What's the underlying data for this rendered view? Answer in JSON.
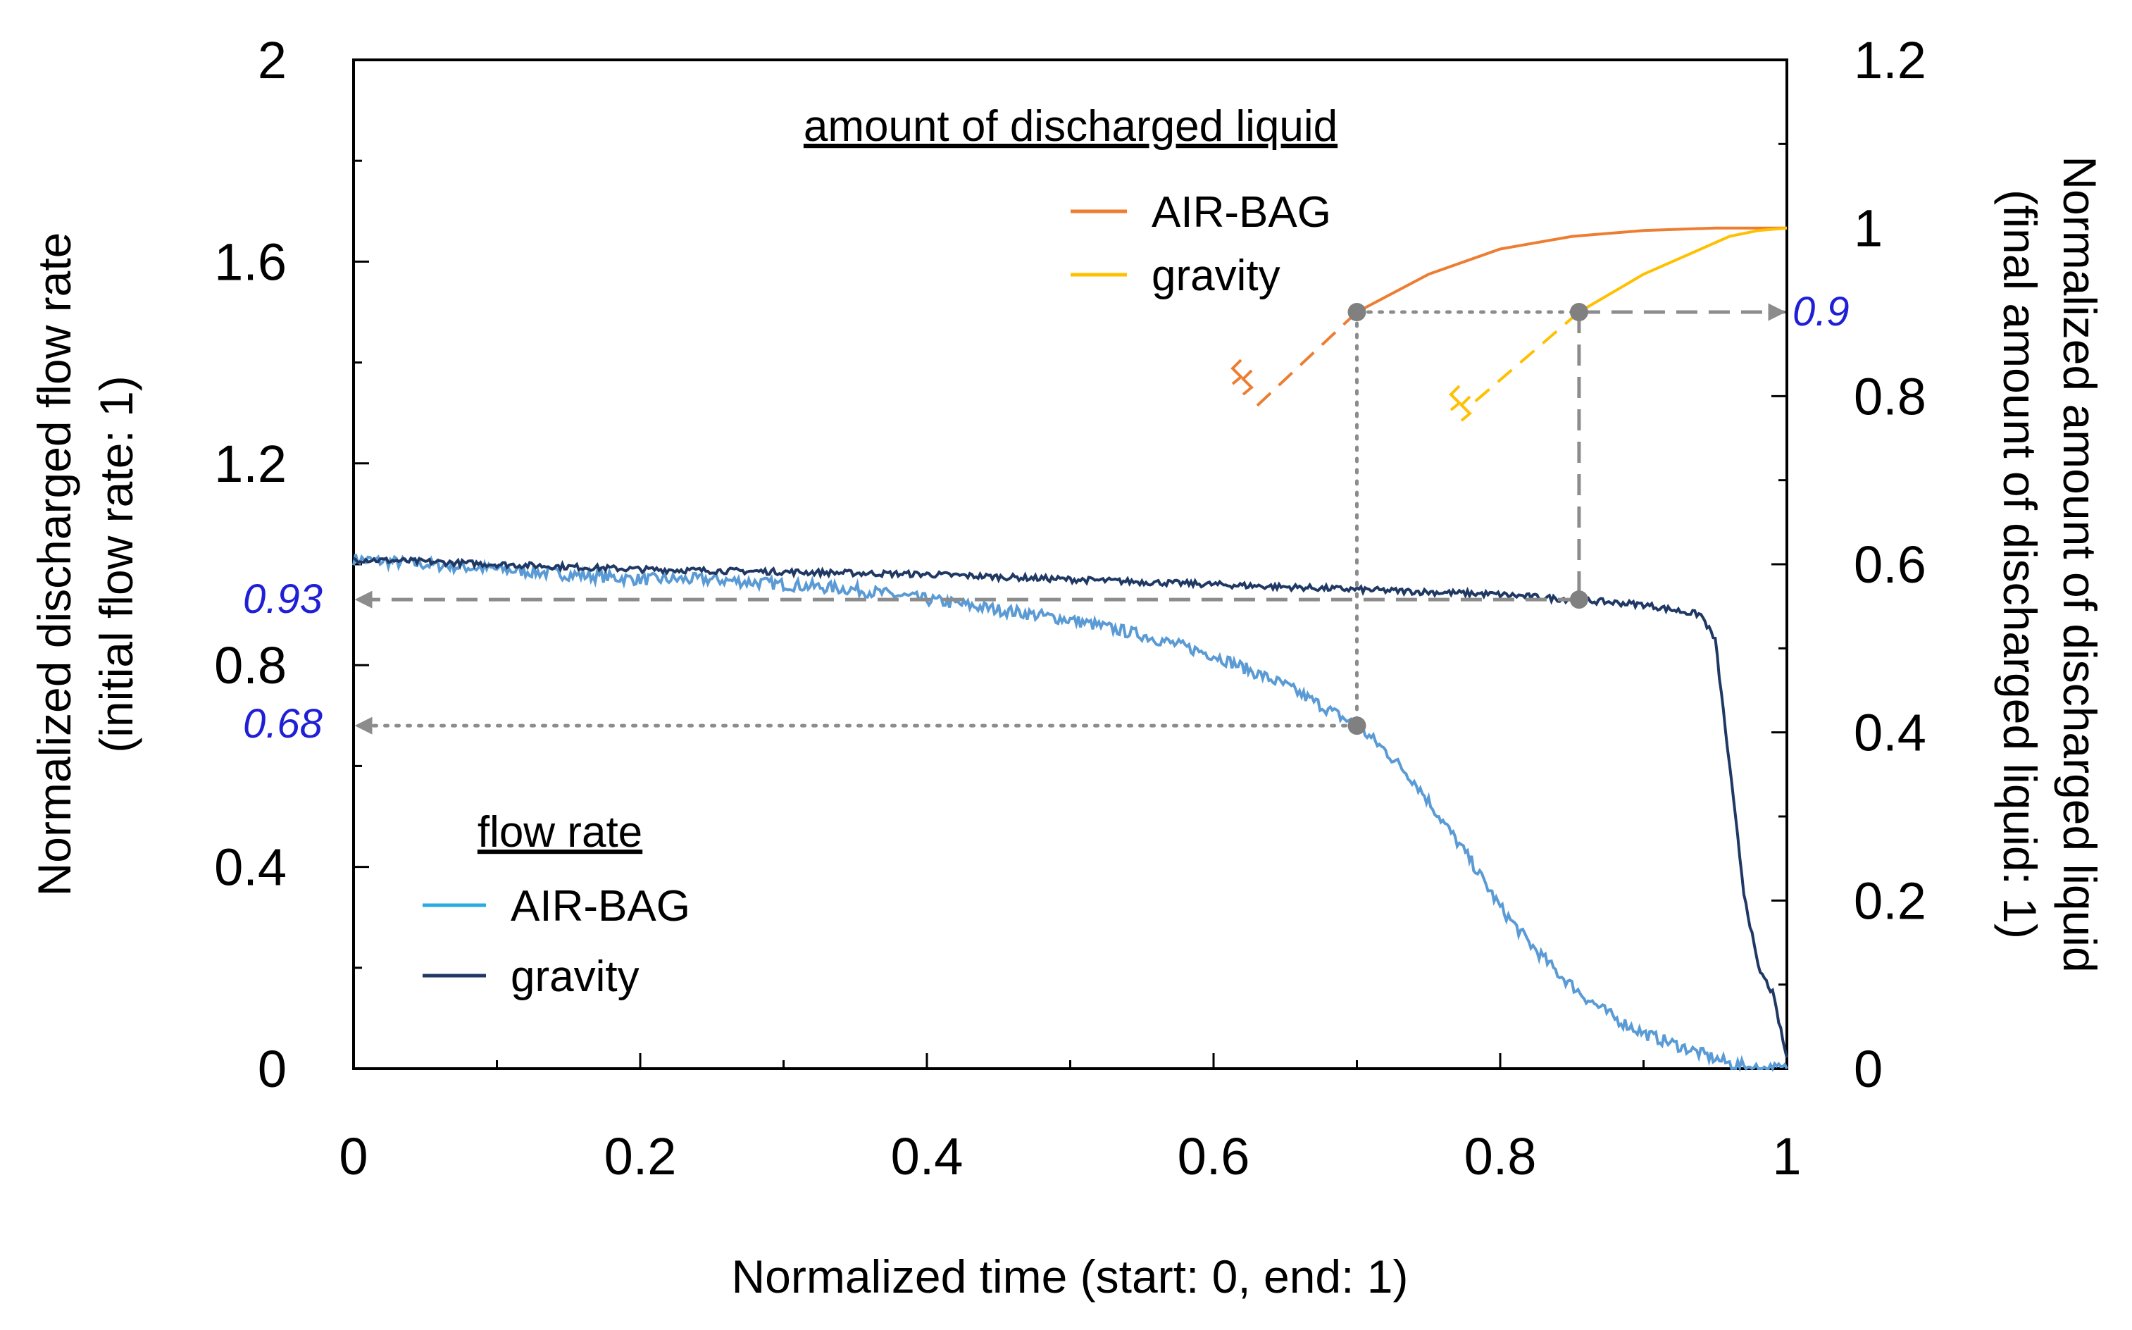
{
  "chart_data": {
    "type": "line",
    "xlabel": "Normalized time (start: 0, end: 1)",
    "ylabel_left": [
      "Normalized discharged flow rate",
      "(initial flow rate: 1)"
    ],
    "ylabel_right": [
      "Normalized amount of discharged liquid",
      "(final amount of discharged liquid: 1)"
    ],
    "xlim": [
      0,
      1
    ],
    "ylim_left": [
      0,
      2
    ],
    "ylim_right": [
      0,
      1.2
    ],
    "x_ticks": [
      0,
      0.2,
      0.4,
      0.6,
      0.8,
      1
    ],
    "x_tick_labels": [
      "0",
      "0.2",
      "0.4",
      "0.6",
      "0.8",
      "1"
    ],
    "y_left_ticks": [
      0,
      0.4,
      0.8,
      1.2,
      1.6,
      2
    ],
    "y_left_tick_labels": [
      "0",
      "0.4",
      "0.8",
      "1.2",
      "1.6",
      "2"
    ],
    "y_right_ticks": [
      0,
      0.2,
      0.4,
      0.6,
      0.8,
      1,
      1.2
    ],
    "y_right_tick_labels": [
      "0",
      "0.2",
      "0.4",
      "0.6",
      "0.8",
      "1",
      "1.2"
    ],
    "legend_flow": {
      "title": "flow rate",
      "placement": "bottom-left",
      "entries": [
        {
          "label": "AIR-BAG",
          "color": "#29abe2"
        },
        {
          "label": "gravity",
          "color": "#1f3864"
        }
      ]
    },
    "legend_amount": {
      "title": "amount of discharged liquid",
      "placement": "top-center",
      "entries": [
        {
          "label": "AIR-BAG",
          "color": "#ed7d31"
        },
        {
          "label": "gravity",
          "color": "#ffc000"
        }
      ]
    },
    "series": [
      {
        "name": "flow rate AIR-BAG",
        "axis": "left",
        "color": "#5b9bd5",
        "noise": 0.012,
        "x": [
          0,
          0.05,
          0.1,
          0.15,
          0.2,
          0.25,
          0.3,
          0.35,
          0.4,
          0.45,
          0.5,
          0.55,
          0.6,
          0.65,
          0.7,
          0.72,
          0.74,
          0.76,
          0.78,
          0.8,
          0.82,
          0.84,
          0.86,
          0.88,
          0.9,
          0.92,
          0.94,
          0.96,
          0.98,
          1.0
        ],
        "y": [
          1.01,
          1.0,
          0.99,
          0.98,
          0.97,
          0.97,
          0.96,
          0.95,
          0.93,
          0.91,
          0.89,
          0.86,
          0.82,
          0.76,
          0.68,
          0.63,
          0.57,
          0.49,
          0.41,
          0.32,
          0.25,
          0.19,
          0.14,
          0.1,
          0.07,
          0.05,
          0.03,
          0.01,
          0.0,
          0.0
        ]
      },
      {
        "name": "flow rate gravity",
        "axis": "left",
        "color": "#1f3864",
        "noise": 0.006,
        "x": [
          0,
          0.1,
          0.2,
          0.3,
          0.4,
          0.5,
          0.6,
          0.7,
          0.8,
          0.85,
          0.9,
          0.94,
          0.95,
          0.96,
          0.97,
          0.98,
          0.99,
          1.0
        ],
        "y": [
          1.01,
          1.0,
          0.99,
          0.985,
          0.98,
          0.97,
          0.96,
          0.95,
          0.94,
          0.93,
          0.92,
          0.9,
          0.85,
          0.6,
          0.35,
          0.2,
          0.15,
          0.02
        ]
      },
      {
        "name": "amount AIR-BAG",
        "axis": "right",
        "color": "#ed7d31",
        "x": [
          0.7,
          0.75,
          0.8,
          0.85,
          0.9,
          0.95,
          1.0
        ],
        "y": [
          0.9,
          0.945,
          0.975,
          0.99,
          0.997,
          1.0,
          1.0
        ]
      },
      {
        "name": "amount gravity",
        "axis": "right",
        "color": "#ffc000",
        "x": [
          0.855,
          0.88,
          0.9,
          0.92,
          0.94,
          0.96,
          0.98,
          1.0
        ],
        "y": [
          0.9,
          0.925,
          0.945,
          0.96,
          0.975,
          0.99,
          0.997,
          1.0
        ]
      }
    ],
    "dashed_extensions": [
      {
        "name": "AIR-BAG amount extrapolation",
        "color": "#ed7d31",
        "from": [
          0.7,
          0.9
        ],
        "to": [
          0.625,
          0.78
        ]
      },
      {
        "name": "gravity amount extrapolation",
        "color": "#ffc000",
        "from": [
          0.855,
          0.9
        ],
        "to": [
          0.78,
          0.79
        ]
      }
    ],
    "annotations": [
      {
        "text": "0.93",
        "axis": "left",
        "value": 0.93
      },
      {
        "text": "0.68",
        "axis": "left",
        "value": 0.68
      },
      {
        "text": "0.9",
        "axis": "right",
        "value": 0.9
      }
    ],
    "markers": [
      {
        "x": 0.7,
        "y_left": 0.68
      },
      {
        "x": 0.7,
        "y_right": 0.9
      },
      {
        "x": 0.855,
        "y_left": 0.93
      },
      {
        "x": 0.855,
        "y_right": 0.9
      }
    ]
  }
}
